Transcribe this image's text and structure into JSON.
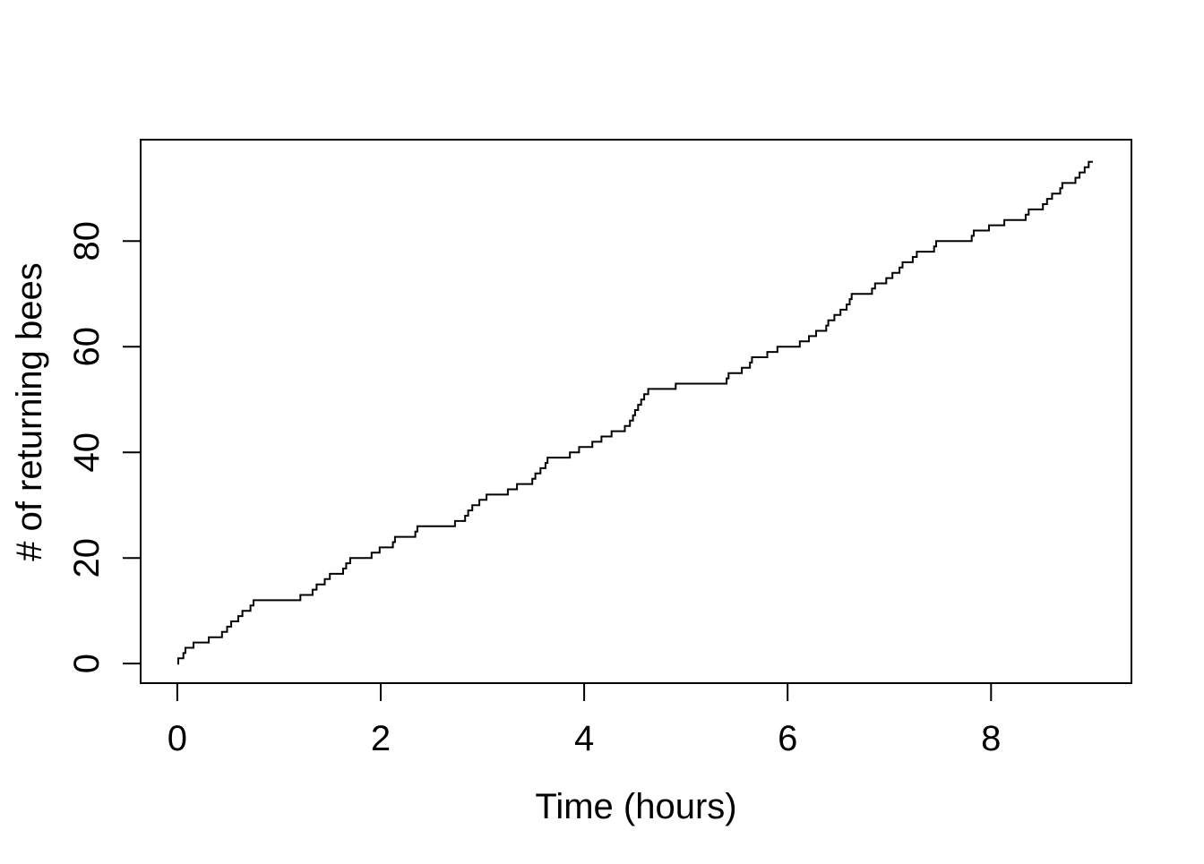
{
  "colors": {
    "foreground": "#000000",
    "background": "#ffffff"
  },
  "chart_data": {
    "type": "line",
    "subtype": "step",
    "title": "",
    "xlabel": "Time (hours)",
    "ylabel": "# of returning bees",
    "x_ticks": [
      0,
      2,
      4,
      6,
      8
    ],
    "y_ticks": [
      0,
      20,
      40,
      60,
      80
    ],
    "xlim": [
      -0.36,
      9.38
    ],
    "ylim": [
      -3.7,
      99.2
    ],
    "grid": "off",
    "legend": null,
    "line_color": "#000000",
    "start_point": {
      "t": 0,
      "count": 0
    },
    "final_count": 95,
    "end_time_hours": 9.0,
    "event_times_hours": [
      0.01,
      0.06,
      0.08,
      0.16,
      0.31,
      0.44,
      0.49,
      0.53,
      0.6,
      0.64,
      0.72,
      0.75,
      1.21,
      1.33,
      1.37,
      1.45,
      1.5,
      1.63,
      1.66,
      1.7,
      1.91,
      1.99,
      2.12,
      2.14,
      2.34,
      2.36,
      2.73,
      2.83,
      2.86,
      2.9,
      2.97,
      3.04,
      3.25,
      3.34,
      3.49,
      3.52,
      3.57,
      3.62,
      3.64,
      3.86,
      3.95,
      4.08,
      4.17,
      4.27,
      4.4,
      4.45,
      4.48,
      4.5,
      4.53,
      4.56,
      4.59,
      4.63,
      4.9,
      5.4,
      5.42,
      5.55,
      5.63,
      5.65,
      5.8,
      5.9,
      6.12,
      6.21,
      6.28,
      6.38,
      6.4,
      6.46,
      6.52,
      6.58,
      6.61,
      6.63,
      6.83,
      6.86,
      6.97,
      7.03,
      7.1,
      7.13,
      7.23,
      7.27,
      7.44,
      7.46,
      7.81,
      7.83,
      7.98,
      8.13,
      8.34,
      8.37,
      8.51,
      8.55,
      8.6,
      8.68,
      8.7,
      8.83,
      8.87,
      8.92,
      8.96
    ]
  }
}
